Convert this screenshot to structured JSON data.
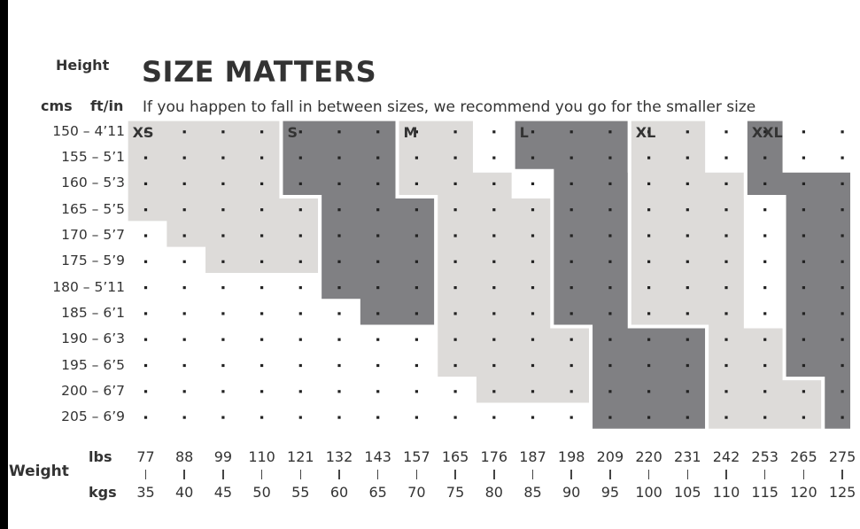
{
  "chart_data": {
    "type": "heatmap",
    "title": "SIZE MATTERS",
    "subtitle": "If you happen to fall in between sizes, we recommend you go for the smaller size",
    "y_axis": {
      "label": "Height",
      "unit_labels": [
        "cms",
        "ft/in"
      ],
      "rows": [
        "150 – 4’11",
        "155 – 5’1",
        "160 – 5’3",
        "165 – 5’5",
        "170 – 5’7",
        "175 – 5’9",
        "180 – 5’11",
        "185 – 6’1",
        "190 – 6’3",
        "195 – 6’5",
        "200 – 6’7",
        "205 – 6’9"
      ]
    },
    "x_axis": {
      "label": "Weight",
      "unit_labels": [
        "lbs",
        "kgs"
      ],
      "lbs": [
        "77",
        "88",
        "99",
        "110",
        "121",
        "132",
        "143",
        "157",
        "165",
        "176",
        "187",
        "198",
        "209",
        "220",
        "231",
        "242",
        "253",
        "265",
        "275"
      ],
      "kgs": [
        "35",
        "40",
        "45",
        "50",
        "55",
        "60",
        "65",
        "70",
        "75",
        "80",
        "85",
        "90",
        "95",
        "100",
        "105",
        "110",
        "115",
        "120",
        "125"
      ]
    },
    "sizes": [
      {
        "name": "XS",
        "tone": "light",
        "label_at": [
          0,
          0
        ],
        "rows": [
          [
            0,
            0,
            3
          ],
          [
            1,
            0,
            3
          ],
          [
            2,
            0,
            3
          ],
          [
            3,
            0,
            4
          ],
          [
            4,
            1,
            4
          ],
          [
            5,
            2,
            4
          ]
        ]
      },
      {
        "name": "S",
        "tone": "dark",
        "label_at": [
          0,
          4
        ],
        "rows": [
          [
            0,
            4,
            6
          ],
          [
            1,
            4,
            6
          ],
          [
            2,
            4,
            6
          ],
          [
            3,
            5,
            7
          ],
          [
            4,
            5,
            7
          ],
          [
            5,
            5,
            7
          ],
          [
            6,
            5,
            7
          ],
          [
            7,
            6,
            7
          ]
        ]
      },
      {
        "name": "M",
        "tone": "light",
        "label_at": [
          0,
          7
        ],
        "rows": [
          [
            0,
            7,
            8
          ],
          [
            1,
            7,
            8
          ],
          [
            2,
            7,
            9
          ],
          [
            3,
            8,
            10
          ],
          [
            4,
            8,
            10
          ],
          [
            5,
            8,
            10
          ],
          [
            6,
            8,
            10
          ],
          [
            7,
            8,
            10
          ],
          [
            8,
            8,
            11
          ],
          [
            9,
            8,
            11
          ],
          [
            10,
            9,
            11
          ]
        ]
      },
      {
        "name": "L",
        "tone": "dark",
        "label_at": [
          0,
          10
        ],
        "rows": [
          [
            0,
            10,
            12
          ],
          [
            1,
            10,
            12
          ],
          [
            2,
            11,
            13
          ],
          [
            3,
            11,
            13
          ],
          [
            4,
            11,
            13
          ],
          [
            5,
            11,
            13
          ],
          [
            6,
            11,
            13
          ],
          [
            7,
            11,
            13
          ],
          [
            8,
            12,
            14
          ],
          [
            9,
            12,
            14
          ],
          [
            10,
            12,
            14
          ],
          [
            11,
            12,
            14
          ]
        ]
      },
      {
        "name": "XL",
        "tone": "light",
        "label_at": [
          0,
          13
        ],
        "rows": [
          [
            0,
            13,
            14
          ],
          [
            1,
            13,
            14
          ],
          [
            2,
            13,
            15
          ],
          [
            3,
            13,
            15
          ],
          [
            4,
            13,
            15
          ],
          [
            5,
            13,
            15
          ],
          [
            6,
            13,
            15
          ],
          [
            7,
            13,
            15
          ],
          [
            8,
            15,
            17
          ],
          [
            9,
            15,
            17
          ],
          [
            10,
            15,
            17
          ],
          [
            11,
            15,
            17
          ]
        ]
      },
      {
        "name": "XXL",
        "tone": "dark",
        "label_at": [
          0,
          16
        ],
        "rows": [
          [
            0,
            16,
            16
          ],
          [
            1,
            16,
            16
          ],
          [
            2,
            16,
            18
          ],
          [
            3,
            17,
            18
          ],
          [
            4,
            17,
            18
          ],
          [
            5,
            17,
            18
          ],
          [
            6,
            17,
            18
          ],
          [
            7,
            17,
            18
          ],
          [
            8,
            17,
            18
          ],
          [
            9,
            17,
            18
          ],
          [
            10,
            18,
            18
          ],
          [
            11,
            18,
            18
          ]
        ]
      }
    ],
    "colors": {
      "light": "#dddbd9",
      "dark": "#808083",
      "dot": "#222222",
      "text": "#333333"
    },
    "grid": "dotted"
  }
}
